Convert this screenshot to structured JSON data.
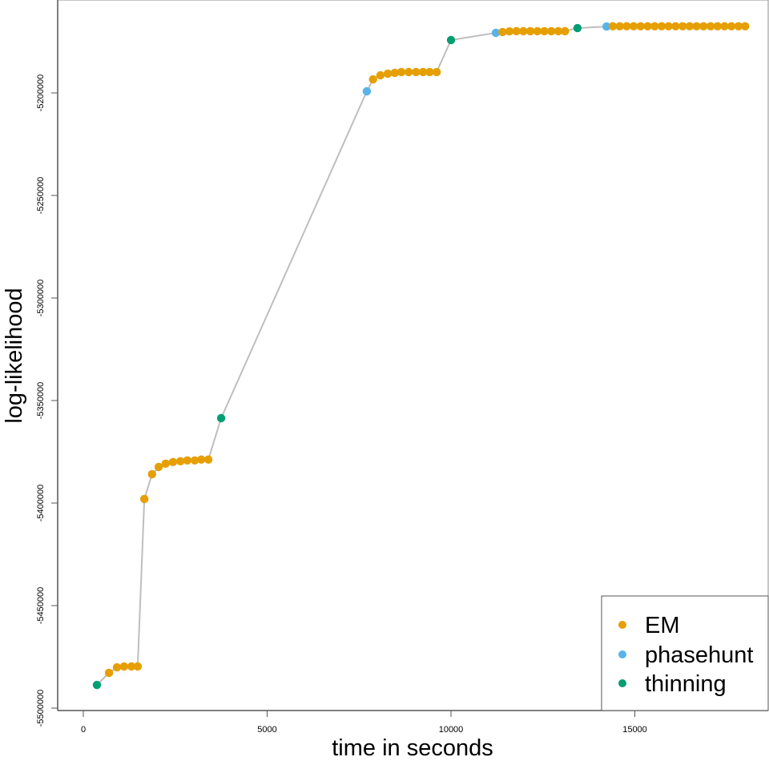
{
  "chart_data": {
    "type": "scatter",
    "title": "",
    "xlabel": "time in seconds",
    "ylabel": "log-likelihood",
    "xlim": [
      -700,
      18700
    ],
    "ylim": [
      -5501500,
      -5154000
    ],
    "xticks": [
      0,
      5000,
      10000,
      15000
    ],
    "xtick_labels": [
      "0",
      "5000",
      "10000",
      "15000"
    ],
    "yticks": [
      -5500000,
      -5450000,
      -5400000,
      -5350000,
      -5300000,
      -5250000,
      -5200000
    ],
    "ytick_labels": [
      "-5500000",
      "-5450000",
      "-5400000",
      "-5350000",
      "-5300000",
      "-5250000",
      "-5200000"
    ],
    "grid": false,
    "legend_position": "bottom-right",
    "line_color": "#bebebe",
    "series": [
      {
        "name": "EM",
        "color": "#e69f00"
      },
      {
        "name": "phasehunt",
        "color": "#56b4e9"
      },
      {
        "name": "thinning",
        "color": "#009e73"
      }
    ],
    "points": [
      {
        "x": 370,
        "y": -5488700,
        "s": "thinning"
      },
      {
        "x": 700,
        "y": -5482800,
        "s": "EM"
      },
      {
        "x": 915,
        "y": -5480100,
        "s": "EM"
      },
      {
        "x": 1110,
        "y": -5479700,
        "s": "EM"
      },
      {
        "x": 1310,
        "y": -5479700,
        "s": "EM"
      },
      {
        "x": 1480,
        "y": -5479700,
        "s": "EM"
      },
      {
        "x": 1660,
        "y": -5398000,
        "s": "EM"
      },
      {
        "x": 1870,
        "y": -5385900,
        "s": "EM"
      },
      {
        "x": 2050,
        "y": -5382400,
        "s": "EM"
      },
      {
        "x": 2240,
        "y": -5380800,
        "s": "EM"
      },
      {
        "x": 2440,
        "y": -5380000,
        "s": "EM"
      },
      {
        "x": 2640,
        "y": -5379600,
        "s": "EM"
      },
      {
        "x": 2830,
        "y": -5379200,
        "s": "EM"
      },
      {
        "x": 3030,
        "y": -5379200,
        "s": "EM"
      },
      {
        "x": 3210,
        "y": -5378800,
        "s": "EM"
      },
      {
        "x": 3400,
        "y": -5378800,
        "s": "EM"
      },
      {
        "x": 3750,
        "y": -5358600,
        "s": "thinning"
      },
      {
        "x": 7710,
        "y": -5199200,
        "s": "phasehunt"
      },
      {
        "x": 7880,
        "y": -5193400,
        "s": "EM"
      },
      {
        "x": 8080,
        "y": -5191400,
        "s": "EM"
      },
      {
        "x": 8280,
        "y": -5190600,
        "s": "EM"
      },
      {
        "x": 8470,
        "y": -5190200,
        "s": "EM"
      },
      {
        "x": 8650,
        "y": -5189800,
        "s": "EM"
      },
      {
        "x": 8850,
        "y": -5189800,
        "s": "EM"
      },
      {
        "x": 9050,
        "y": -5189800,
        "s": "EM"
      },
      {
        "x": 9240,
        "y": -5189800,
        "s": "EM"
      },
      {
        "x": 9420,
        "y": -5189800,
        "s": "EM"
      },
      {
        "x": 9610,
        "y": -5189800,
        "s": "EM"
      },
      {
        "x": 10000,
        "y": -5174200,
        "s": "thinning"
      },
      {
        "x": 11220,
        "y": -5170700,
        "s": "phasehunt"
      },
      {
        "x": 11400,
        "y": -5170300,
        "s": "EM"
      },
      {
        "x": 11590,
        "y": -5170000,
        "s": "EM"
      },
      {
        "x": 11780,
        "y": -5169900,
        "s": "EM"
      },
      {
        "x": 11970,
        "y": -5169900,
        "s": "EM"
      },
      {
        "x": 12160,
        "y": -5169900,
        "s": "EM"
      },
      {
        "x": 12350,
        "y": -5169900,
        "s": "EM"
      },
      {
        "x": 12540,
        "y": -5169900,
        "s": "EM"
      },
      {
        "x": 12730,
        "y": -5169900,
        "s": "EM"
      },
      {
        "x": 12920,
        "y": -5169900,
        "s": "EM"
      },
      {
        "x": 13100,
        "y": -5169900,
        "s": "EM"
      },
      {
        "x": 13440,
        "y": -5168400,
        "s": "thinning"
      },
      {
        "x": 14230,
        "y": -5167600,
        "s": "phasehunt"
      },
      {
        "x": 14400,
        "y": -5167500,
        "s": "EM"
      },
      {
        "x": 14590,
        "y": -5167500,
        "s": "EM"
      },
      {
        "x": 14780,
        "y": -5167500,
        "s": "EM"
      },
      {
        "x": 14970,
        "y": -5167500,
        "s": "EM"
      },
      {
        "x": 15160,
        "y": -5167500,
        "s": "EM"
      },
      {
        "x": 15350,
        "y": -5167500,
        "s": "EM"
      },
      {
        "x": 15540,
        "y": -5167500,
        "s": "EM"
      },
      {
        "x": 15730,
        "y": -5167500,
        "s": "EM"
      },
      {
        "x": 15920,
        "y": -5167500,
        "s": "EM"
      },
      {
        "x": 16110,
        "y": -5167500,
        "s": "EM"
      },
      {
        "x": 16300,
        "y": -5167500,
        "s": "EM"
      },
      {
        "x": 16490,
        "y": -5167500,
        "s": "EM"
      },
      {
        "x": 16680,
        "y": -5167500,
        "s": "EM"
      },
      {
        "x": 16870,
        "y": -5167500,
        "s": "EM"
      },
      {
        "x": 17060,
        "y": -5167500,
        "s": "EM"
      },
      {
        "x": 17250,
        "y": -5167500,
        "s": "EM"
      },
      {
        "x": 17440,
        "y": -5167500,
        "s": "EM"
      },
      {
        "x": 17630,
        "y": -5167500,
        "s": "EM"
      },
      {
        "x": 17820,
        "y": -5167500,
        "s": "EM"
      },
      {
        "x": 18000,
        "y": -5167500,
        "s": "EM"
      }
    ]
  }
}
